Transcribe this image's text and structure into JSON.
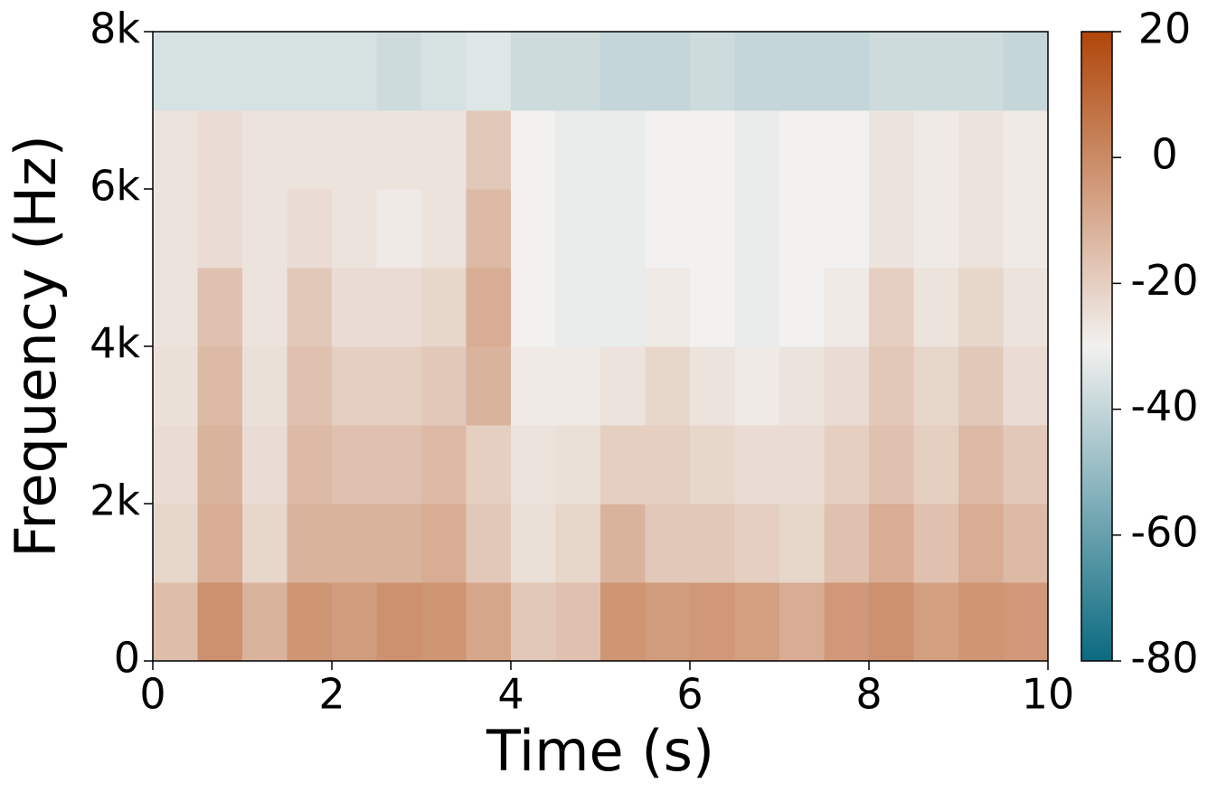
{
  "chart_data": {
    "type": "heatmap",
    "x_label": "Time (s)",
    "y_label": "Frequency (Hz)",
    "x": [
      0.25,
      0.75,
      1.25,
      1.75,
      2.25,
      2.75,
      3.25,
      3.75,
      4.25,
      4.75,
      5.25,
      5.75,
      6.25,
      6.75,
      7.25,
      7.75,
      8.25,
      8.75,
      9.25,
      9.75
    ],
    "y": [
      500,
      1500,
      2500,
      3500,
      4500,
      5500,
      6500,
      7500
    ],
    "z": [
      [
        -15,
        -2,
        -12,
        -3,
        -5,
        -2,
        -3,
        -8,
        -18,
        -16,
        -3,
        -5,
        -4,
        -6,
        -10,
        -4,
        -2,
        -6,
        -3,
        -4
      ],
      [
        -22,
        -10,
        -22,
        -12,
        -12,
        -12,
        -10,
        -18,
        -25,
        -22,
        -12,
        -18,
        -18,
        -20,
        -22,
        -16,
        -10,
        -16,
        -10,
        -14
      ],
      [
        -24,
        -12,
        -24,
        -14,
        -16,
        -16,
        -14,
        -20,
        -26,
        -25,
        -20,
        -20,
        -22,
        -24,
        -24,
        -20,
        -16,
        -20,
        -14,
        -18
      ],
      [
        -25,
        -14,
        -25,
        -16,
        -20,
        -20,
        -18,
        -12,
        -28,
        -28,
        -26,
        -22,
        -26,
        -28,
        -26,
        -24,
        -18,
        -22,
        -18,
        -24
      ],
      [
        -26,
        -16,
        -26,
        -18,
        -24,
        -24,
        -22,
        -10,
        -30,
        -32,
        -32,
        -28,
        -30,
        -32,
        -30,
        -28,
        -20,
        -26,
        -22,
        -26
      ],
      [
        -26,
        -24,
        -26,
        -24,
        -26,
        -28,
        -26,
        -14,
        -30,
        -32,
        -32,
        -30,
        -30,
        -32,
        -30,
        -30,
        -26,
        -28,
        -26,
        -28
      ],
      [
        -26,
        -24,
        -26,
        -26,
        -26,
        -26,
        -26,
        -18,
        -30,
        -32,
        -32,
        -30,
        -30,
        -32,
        -30,
        -30,
        -26,
        -28,
        -26,
        -28
      ],
      [
        -36,
        -36,
        -36,
        -36,
        -36,
        -38,
        -36,
        -34,
        -38,
        -38,
        -40,
        -40,
        -38,
        -40,
        -40,
        -40,
        -38,
        -38,
        -38,
        -40
      ]
    ],
    "xlim": [
      0,
      10
    ],
    "xticks": [
      0,
      2,
      4,
      6,
      8,
      10
    ],
    "ylim": [
      0,
      8000
    ],
    "yticks": [
      0,
      {
        "value": 2000,
        "label": "2k"
      },
      {
        "value": 4000,
        "label": "4k"
      },
      {
        "value": 6000,
        "label": "6k"
      },
      {
        "value": 8000,
        "label": "8k"
      }
    ],
    "clim": [
      -80,
      20
    ],
    "cticks": [
      -80,
      -60,
      -40,
      -20,
      0,
      20
    ],
    "colors": [
      "#0a6a80",
      "#f2f1ef",
      "#b0460a"
    ]
  }
}
